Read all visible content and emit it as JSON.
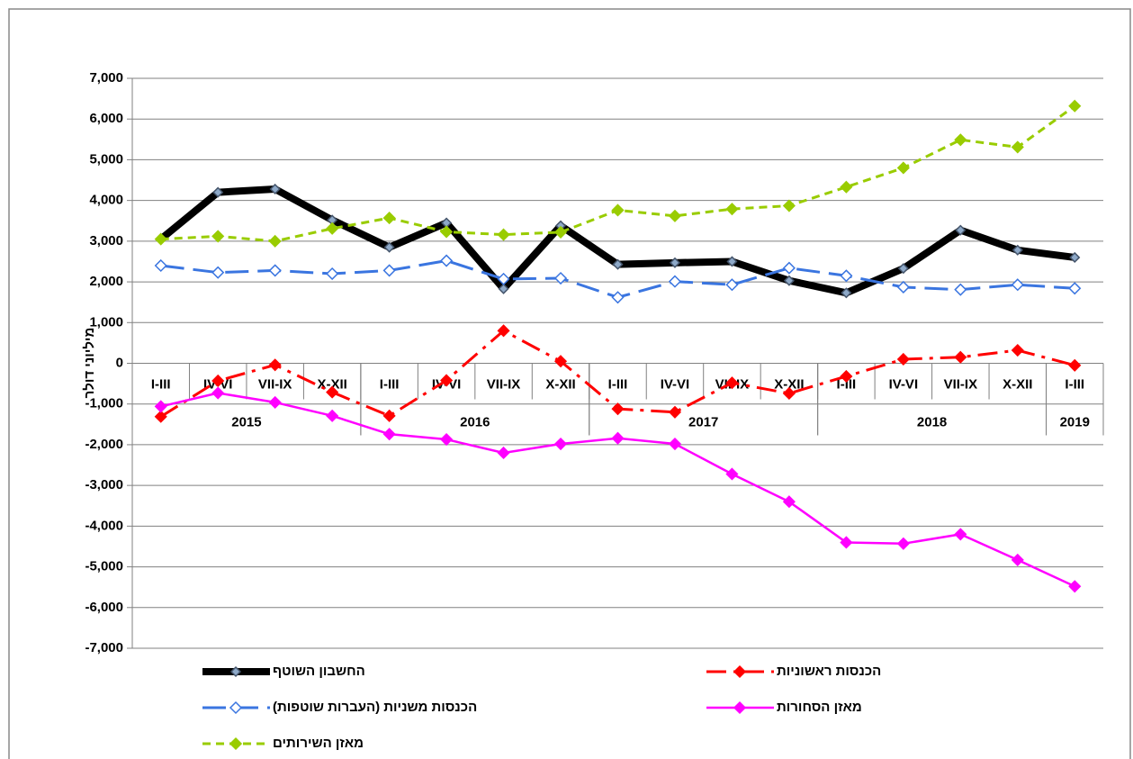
{
  "chart_data": {
    "type": "line",
    "y_axis_label": "מיליוני דולר",
    "categories": [
      "I-III",
      "IV-VI",
      "VII-IX",
      "X-XII",
      "I-III",
      "IV-VI",
      "VII-IX",
      "X-XII",
      "I-III",
      "IV-VI",
      "VII-IX",
      "X-XII",
      "I-III",
      "IV-VI",
      "VII-IX",
      "X-XII",
      "I-III"
    ],
    "category_groups": [
      {
        "label": "2015",
        "count": 4
      },
      {
        "label": "2016",
        "count": 4
      },
      {
        "label": "2017",
        "count": 4
      },
      {
        "label": "2018",
        "count": 4
      },
      {
        "label": "2019",
        "count": 1
      }
    ],
    "ylim": [
      -7000,
      7000
    ],
    "yticks": [
      {
        "value": -7000,
        "label": "-7,000"
      },
      {
        "value": -6000,
        "label": "-6,000"
      },
      {
        "value": -5000,
        "label": "-5,000"
      },
      {
        "value": -4000,
        "label": "-4,000"
      },
      {
        "value": -3000,
        "label": "-3,000"
      },
      {
        "value": -2000,
        "label": "-2,000"
      },
      {
        "value": -1000,
        "label": "-1,000"
      },
      0,
      {
        "value": 1000,
        "label": "1,000"
      },
      {
        "value": 2000,
        "label": "2,000"
      },
      {
        "value": 3000,
        "label": "3,000"
      },
      {
        "value": 4000,
        "label": "4,000"
      },
      {
        "value": 5000,
        "label": "5,000"
      },
      {
        "value": 6000,
        "label": "6,000"
      },
      {
        "value": 7000,
        "label": "7,000"
      }
    ],
    "grid": true,
    "series": [
      {
        "name": "החשבון השוטף",
        "color": "#000000",
        "values": [
          3050,
          4200,
          4280,
          3520,
          2850,
          3450,
          1830,
          3380,
          2430,
          2470,
          2500,
          2030,
          1730,
          2330,
          3270,
          2780,
          2600
        ]
      },
      {
        "name": "הכנסות ראשוניות",
        "color": "#ff0000",
        "values": [
          -1310,
          -430,
          -40,
          -710,
          -1290,
          -420,
          800,
          50,
          -1120,
          -1200,
          -480,
          -740,
          -320,
          100,
          150,
          320,
          -50
        ]
      },
      {
        "name": "הכנסות משניות (העברות שוטפות)",
        "color": "#3a75e0",
        "values": [
          2400,
          2230,
          2280,
          2200,
          2280,
          2520,
          2070,
          2090,
          1620,
          2010,
          1930,
          2340,
          2150,
          1870,
          1810,
          1930,
          1840
        ]
      },
      {
        "name": "מאזן הסחורות",
        "color": "#ff00ff",
        "values": [
          -1060,
          -730,
          -960,
          -1290,
          -1740,
          -1870,
          -2200,
          -1980,
          -1840,
          -1980,
          -2720,
          -3400,
          -4400,
          -4430,
          -4200,
          -4830,
          -5480
        ]
      },
      {
        "name": "מאזן השירותים",
        "color": "#99cc00",
        "values": [
          3050,
          3120,
          3000,
          3310,
          3570,
          3230,
          3160,
          3220,
          3760,
          3620,
          3790,
          3870,
          4330,
          4800,
          5490,
          5310,
          6320
        ]
      }
    ]
  }
}
